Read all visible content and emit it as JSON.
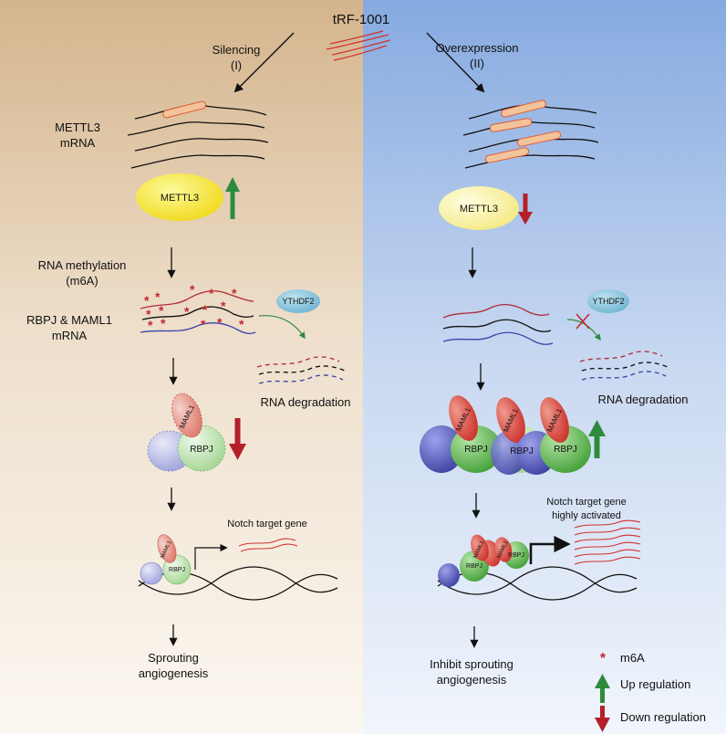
{
  "title": "tRF-1001",
  "branches": {
    "left": {
      "label": "Silencing",
      "numeral": "(I)"
    },
    "right": {
      "label": "Overexpression",
      "numeral": "(II)"
    }
  },
  "labels": {
    "mettl3_mrna": "METTL3\nmRNA",
    "mettl3": "METTL3",
    "rna_methylation": "RNA methylation\n(m6A)",
    "rbpj_maml1_mrna": "RBPJ & MAML1\nmRNA",
    "ythdf2": "YTHDF2",
    "rna_degradation": "RNA degradation",
    "maml1": "MAML1",
    "rbpj": "RBPJ",
    "notch_target_left": "Notch target gene",
    "notch_target_right": "Notch target gene\nhighly activated",
    "outcome_left": "Sprouting\nangiogenesis",
    "outcome_right": "Inhibit sprouting\nangiogenesis"
  },
  "legend": [
    {
      "symbol": "*",
      "label": "m6A",
      "color": "#c0282d"
    },
    {
      "symbol": "up-arrow-icon",
      "label": "Up regulation",
      "color": "#2e8b3e"
    },
    {
      "symbol": "down-arrow-icon",
      "label": "Down regulation",
      "color": "#b3202a"
    }
  ],
  "colors": {
    "left_bg": "#d9b992",
    "right_bg": "#8fb1e3",
    "mettl3_yellow": "#f5e52a",
    "ythdf2_blue": "#86c3dc",
    "maml1_red": "#d4352e",
    "rbpj_green": "#4aa93f",
    "blue_blob": "#4a4fb0",
    "up_green": "#2e8b3e",
    "down_red": "#b3202a"
  }
}
